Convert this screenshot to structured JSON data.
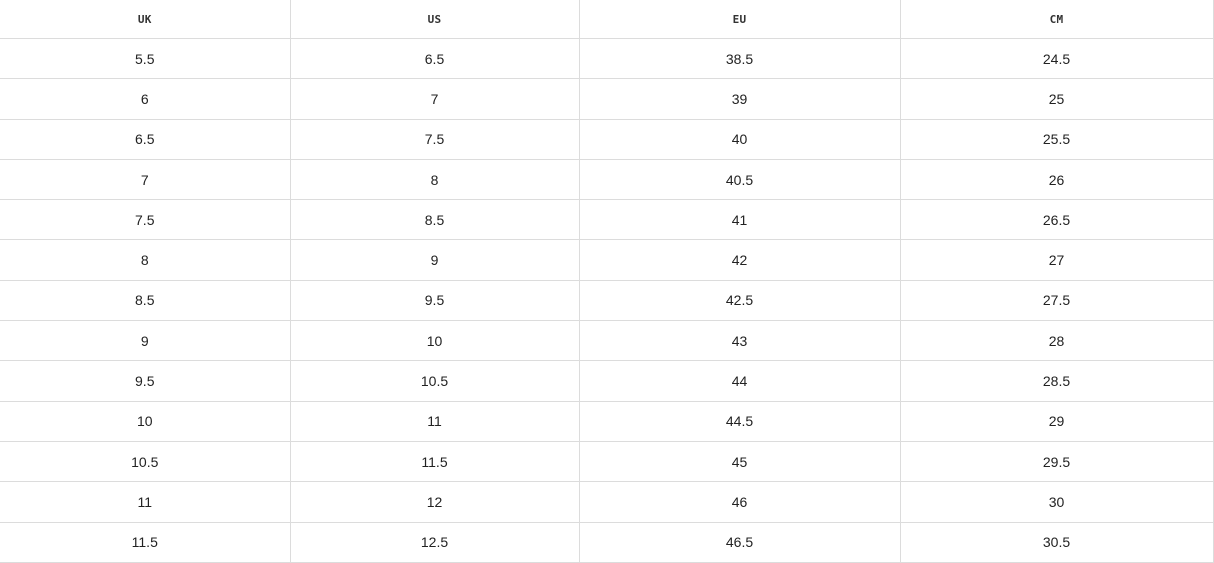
{
  "table": {
    "headers": [
      "UK",
      "US",
      "EU",
      "CM"
    ],
    "rows": [
      [
        "5.5",
        "6.5",
        "38.5",
        "24.5"
      ],
      [
        "6",
        "7",
        "39",
        "25"
      ],
      [
        "6.5",
        "7.5",
        "40",
        "25.5"
      ],
      [
        "7",
        "8",
        "40.5",
        "26"
      ],
      [
        "7.5",
        "8.5",
        "41",
        "26.5"
      ],
      [
        "8",
        "9",
        "42",
        "27"
      ],
      [
        "8.5",
        "9.5",
        "42.5",
        "27.5"
      ],
      [
        "9",
        "10",
        "43",
        "28"
      ],
      [
        "9.5",
        "10.5",
        "44",
        "28.5"
      ],
      [
        "10",
        "11",
        "44.5",
        "29"
      ],
      [
        "10.5",
        "11.5",
        "45",
        "29.5"
      ],
      [
        "11",
        "12",
        "46",
        "30"
      ],
      [
        "11.5",
        "12.5",
        "46.5",
        "30.5"
      ]
    ]
  }
}
